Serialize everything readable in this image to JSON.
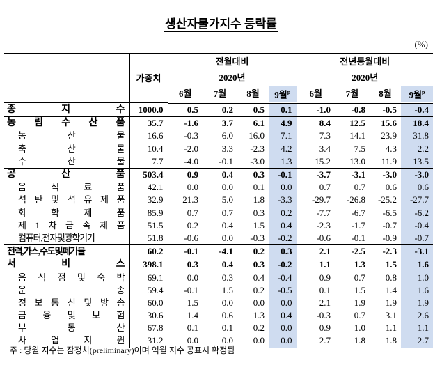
{
  "header": {
    "title": "생산자물가지수 등락률",
    "unit": "(%)"
  },
  "table": {
    "weight_header": "가중치",
    "provisional_mark": "p",
    "blocks": [
      {
        "name": "전월대비",
        "year": "2020년",
        "months": [
          "6월",
          "7월",
          "8월",
          "9월"
        ]
      },
      {
        "name": "전년동월대비",
        "year": "2020년",
        "months": [
          "6월",
          "7월",
          "8월",
          "9월"
        ]
      }
    ],
    "groups": [
      {
        "name": "종 지 수",
        "weight": "1000.0",
        "values": [
          "0.5",
          "0.2",
          "0.5",
          "0.1",
          "-1.0",
          "-0.8",
          "-0.5",
          "-0.4"
        ],
        "items": []
      },
      {
        "name": "농 림 수 산 품",
        "weight": "35.7",
        "values": [
          "-1.6",
          "3.7",
          "6.1",
          "4.9",
          "8.4",
          "12.5",
          "15.6",
          "18.4"
        ],
        "items": [
          {
            "name": "농 산 물",
            "weight": "16.6",
            "values": [
              "-0.3",
              "6.0",
              "16.0",
              "7.1",
              "7.3",
              "14.1",
              "23.9",
              "31.8"
            ]
          },
          {
            "name": "축 산 물",
            "weight": "10.4",
            "values": [
              "-2.0",
              "3.3",
              "-2.3",
              "4.2",
              "3.4",
              "7.5",
              "4.3",
              "2.2"
            ]
          },
          {
            "name": "수 산 물",
            "weight": "7.7",
            "values": [
              "-4.0",
              "-0.1",
              "-3.0",
              "1.3",
              "15.2",
              "13.0",
              "11.9",
              "13.5"
            ]
          }
        ]
      },
      {
        "name": "공 산 품",
        "weight": "503.4",
        "values": [
          "0.9",
          "0.4",
          "0.3",
          "-0.1",
          "-3.7",
          "-3.1",
          "-3.0",
          "-3.0"
        ],
        "items": [
          {
            "name": "음 식 료 품",
            "weight": "42.1",
            "values": [
              "0.0",
              "0.0",
              "0.1",
              "0.0",
              "0.7",
              "0.7",
              "0.6",
              "0.6"
            ]
          },
          {
            "name": "석 탄 및 석 유 제 품",
            "weight": "32.9",
            "values": [
              "21.3",
              "5.0",
              "1.8",
              "-3.3",
              "-29.7",
              "-26.8",
              "-25.2",
              "-27.7"
            ]
          },
          {
            "name": "화 학 제 품",
            "weight": "85.9",
            "values": [
              "0.7",
              "0.7",
              "0.3",
              "0.2",
              "-7.7",
              "-6.7",
              "-6.5",
              "-6.2"
            ]
          },
          {
            "name": "제 1 차 금 속 제 품",
            "weight": "51.5",
            "values": [
              "0.2",
              "0.4",
              "1.5",
              "0.4",
              "-2.3",
              "-1.7",
              "-0.7",
              "-0.4"
            ]
          },
          {
            "name": "컴퓨터,전자및광학기기",
            "weight": "51.8",
            "values": [
              "-0.6",
              "0.0",
              "-0.3",
              "-0.2",
              "-0.6",
              "-0.1",
              "-0.9",
              "-0.7"
            ]
          }
        ]
      },
      {
        "name": "전력,가스,수도및폐기물",
        "weight": "60.2",
        "values": [
          "-0.1",
          "-4.1",
          "0.2",
          "0.3",
          "2.1",
          "-2.5",
          "-2.3",
          "-3.1"
        ],
        "items": []
      },
      {
        "name": "서 비 스",
        "weight": "398.1",
        "values": [
          "0.3",
          "0.4",
          "0.3",
          "-0.2",
          "1.1",
          "1.3",
          "1.5",
          "1.6"
        ],
        "items": [
          {
            "name": "음 식 점 및 숙 박",
            "weight": "69.1",
            "values": [
              "0.0",
              "0.3",
              "0.4",
              "-0.4",
              "0.9",
              "0.7",
              "0.8",
              "1.0"
            ]
          },
          {
            "name": "운 송",
            "weight": "59.4",
            "values": [
              "-0.1",
              "1.5",
              "0.2",
              "-0.5",
              "0.1",
              "1.5",
              "1.4",
              "1.6"
            ]
          },
          {
            "name": "정 보 통 신 및 방 송",
            "weight": "60.0",
            "values": [
              "1.5",
              "0.0",
              "0.0",
              "0.0",
              "2.1",
              "1.9",
              "1.9",
              "1.9"
            ]
          },
          {
            "name": "금 융 및 보 험",
            "weight": "30.6",
            "values": [
              "1.4",
              "0.6",
              "1.3",
              "0.4",
              "-0.3",
              "0.7",
              "3.1",
              "2.6"
            ]
          },
          {
            "name": "부 동 산",
            "weight": "67.8",
            "values": [
              "0.1",
              "0.1",
              "0.2",
              "0.0",
              "0.9",
              "1.0",
              "1.1",
              "1.1"
            ]
          },
          {
            "name": "사 업 지 원",
            "weight": "31.2",
            "values": [
              "0.0",
              "0.0",
              "0.0",
              "0.0",
              "2.7",
              "1.8",
              "1.8",
              "2.7"
            ]
          }
        ]
      }
    ]
  },
  "note": "주 : 당월 지수는 잠정치(preliminary)이며 익월 지수 공표시 확정됨"
}
